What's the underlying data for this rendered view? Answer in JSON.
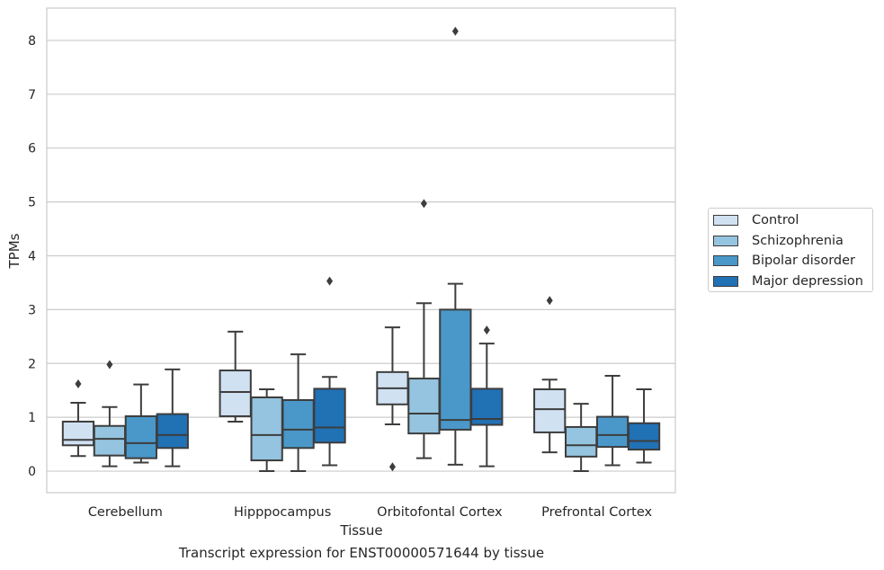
{
  "chart_data": {
    "type": "box",
    "title": "",
    "caption": "Transcript expression for ENST00000571644 by tissue",
    "xlabel": "Tissue",
    "ylabel": "TPMs",
    "ylim": [
      -0.4,
      8.6
    ],
    "yticks": [
      "0",
      "1",
      "2",
      "3",
      "4",
      "5",
      "6",
      "7",
      "8"
    ],
    "grid": true,
    "legend_position": "right",
    "categories": [
      "Cerebellum",
      "Hipppocampus",
      "Orbitofontal Cortex",
      "Prefrontal Cortex"
    ],
    "series": [
      {
        "name": "Control",
        "color": "#d0e1f2",
        "boxes": [
          {
            "whisker_low": 0.28,
            "q1": 0.48,
            "median": 0.58,
            "q3": 0.92,
            "whisker_high": 1.27,
            "outliers": [
              1.62
            ]
          },
          {
            "whisker_low": 0.92,
            "q1": 1.02,
            "median": 1.47,
            "q3": 1.87,
            "whisker_high": 2.59,
            "outliers": []
          },
          {
            "whisker_low": 0.87,
            "q1": 1.24,
            "median": 1.54,
            "q3": 1.84,
            "whisker_high": 2.67,
            "outliers": [
              0.08
            ]
          },
          {
            "whisker_low": 0.35,
            "q1": 0.72,
            "median": 1.15,
            "q3": 1.52,
            "whisker_high": 1.7,
            "outliers": [
              3.17
            ]
          }
        ]
      },
      {
        "name": "Schizophrenia",
        "color": "#94c4df",
        "boxes": [
          {
            "whisker_low": 0.09,
            "q1": 0.29,
            "median": 0.6,
            "q3": 0.84,
            "whisker_high": 1.19,
            "outliers": [
              1.98
            ]
          },
          {
            "whisker_low": 0.0,
            "q1": 0.2,
            "median": 0.67,
            "q3": 1.37,
            "whisker_high": 1.52,
            "outliers": []
          },
          {
            "whisker_low": 0.24,
            "q1": 0.7,
            "median": 1.07,
            "q3": 1.72,
            "whisker_high": 3.12,
            "outliers": [
              4.97
            ]
          },
          {
            "whisker_low": 0.0,
            "q1": 0.27,
            "median": 0.48,
            "q3": 0.82,
            "whisker_high": 1.25,
            "outliers": []
          }
        ]
      },
      {
        "name": "Bipolar disorder",
        "color": "#4a98c9",
        "boxes": [
          {
            "whisker_low": 0.16,
            "q1": 0.24,
            "median": 0.52,
            "q3": 1.02,
            "whisker_high": 1.61,
            "outliers": []
          },
          {
            "whisker_low": 0.0,
            "q1": 0.43,
            "median": 0.77,
            "q3": 1.32,
            "whisker_high": 2.17,
            "outliers": []
          },
          {
            "whisker_low": 0.12,
            "q1": 0.77,
            "median": 0.95,
            "q3": 3.0,
            "whisker_high": 3.48,
            "outliers": [
              8.17
            ]
          },
          {
            "whisker_low": 0.11,
            "q1": 0.45,
            "median": 0.67,
            "q3": 1.01,
            "whisker_high": 1.77,
            "outliers": []
          }
        ]
      },
      {
        "name": "Major depression",
        "color": "#2171b5",
        "boxes": [
          {
            "whisker_low": 0.09,
            "q1": 0.43,
            "median": 0.67,
            "q3": 1.06,
            "whisker_high": 1.89,
            "outliers": []
          },
          {
            "whisker_low": 0.11,
            "q1": 0.53,
            "median": 0.81,
            "q3": 1.53,
            "whisker_high": 1.75,
            "outliers": [
              3.53
            ]
          },
          {
            "whisker_low": 0.09,
            "q1": 0.86,
            "median": 0.97,
            "q3": 1.53,
            "whisker_high": 2.37,
            "outliers": [
              2.62
            ]
          },
          {
            "whisker_low": 0.16,
            "q1": 0.4,
            "median": 0.56,
            "q3": 0.89,
            "whisker_high": 1.52,
            "outliers": []
          }
        ]
      }
    ]
  }
}
